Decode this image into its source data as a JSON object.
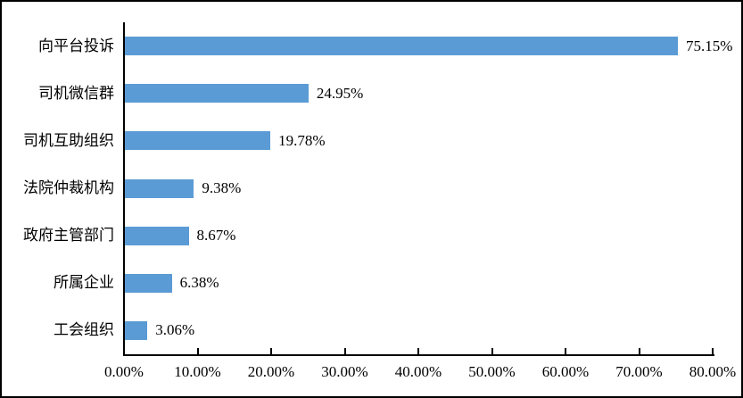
{
  "figure": {
    "background": "#FFFFFF",
    "border_color": "#000000"
  },
  "chart_data": {
    "type": "bar",
    "orientation": "horizontal",
    "categories": [
      "向平台投诉",
      "司机微信群",
      "司机互助组织",
      "法院仲裁机构",
      "政府主管部门",
      "所属企业",
      "工会组织"
    ],
    "values": [
      75.15,
      24.95,
      19.78,
      9.38,
      8.67,
      6.38,
      3.06
    ],
    "value_labels": [
      "75.15%",
      "24.95%",
      "19.78%",
      "9.38%",
      "8.67%",
      "6.38%",
      "3.06%"
    ],
    "x_axis": {
      "min": 0,
      "max": 80,
      "tick_step": 10,
      "tick_labels": [
        "0.00%",
        "10.00%",
        "20.00%",
        "30.00%",
        "40.00%",
        "50.00%",
        "60.00%",
        "70.00%",
        "80.00%"
      ]
    },
    "bar_color": "#5B9BD5",
    "axis_color": "#000000",
    "text_color": "#000000",
    "grid": false,
    "legend": false
  }
}
